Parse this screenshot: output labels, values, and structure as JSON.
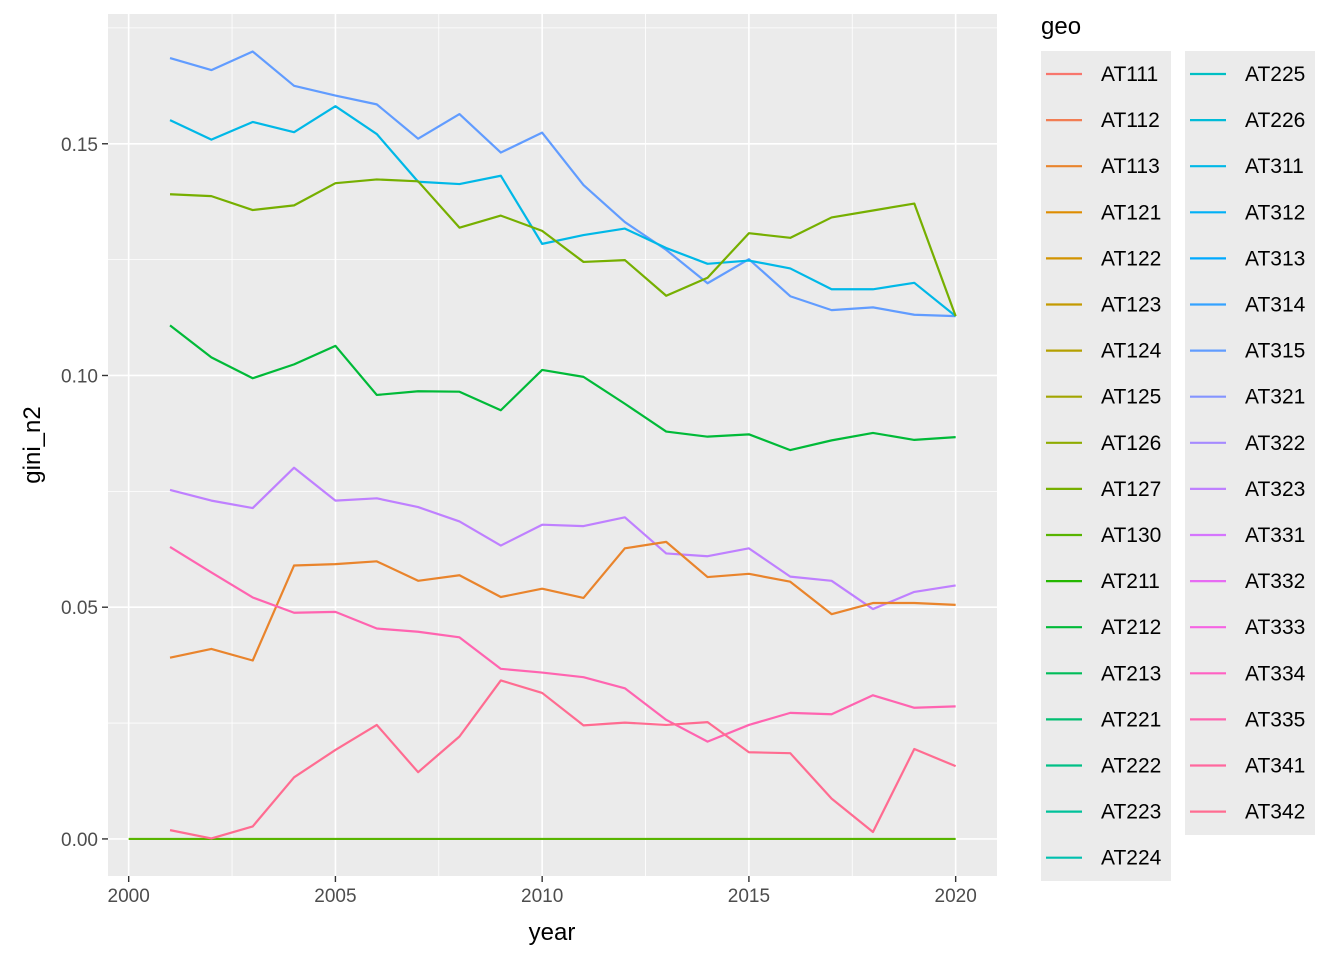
{
  "chart_data": {
    "type": "line",
    "xlabel": "year",
    "ylabel": "gini_n2",
    "xlim": [
      1999.5,
      2021
    ],
    "ylim": [
      -0.008,
      0.178
    ],
    "x_ticks": [
      2000,
      2005,
      2010,
      2015,
      2020
    ],
    "x_tick_labels": [
      "2000",
      "2005",
      "2010",
      "2015",
      "2020"
    ],
    "y_ticks": [
      0.0,
      0.05,
      0.1,
      0.15
    ],
    "y_tick_labels": [
      "0.00",
      "0.05",
      "0.10",
      "0.15"
    ],
    "background": "#EBEBEB",
    "grid": true,
    "legend_position": "right",
    "legend_title": "geo",
    "legend_entries": [
      {
        "label": "AT111",
        "color": "#F8766D"
      },
      {
        "label": "AT112",
        "color": "#F27D53"
      },
      {
        "label": "AT113",
        "color": "#E9842C"
      },
      {
        "label": "AT121",
        "color": "#DE8C00"
      },
      {
        "label": "AT122",
        "color": "#D29300"
      },
      {
        "label": "AT123",
        "color": "#C49A00"
      },
      {
        "label": "AT124",
        "color": "#B4A000"
      },
      {
        "label": "AT125",
        "color": "#A2A500"
      },
      {
        "label": "AT126",
        "color": "#8EAB00"
      },
      {
        "label": "AT127",
        "color": "#76AF00"
      },
      {
        "label": "AT130",
        "color": "#58B400"
      },
      {
        "label": "AT211",
        "color": "#24B700"
      },
      {
        "label": "AT212",
        "color": "#00BA38"
      },
      {
        "label": "AT213",
        "color": "#00BC59"
      },
      {
        "label": "AT221",
        "color": "#00BE71"
      },
      {
        "label": "AT222",
        "color": "#00C086"
      },
      {
        "label": "AT223",
        "color": "#00C19A"
      },
      {
        "label": "AT224",
        "color": "#00C0AF"
      },
      {
        "label": "AT225",
        "color": "#00BFC4"
      },
      {
        "label": "AT226",
        "color": "#00BCD8"
      },
      {
        "label": "AT311",
        "color": "#00B8E7"
      },
      {
        "label": "AT312",
        "color": "#00B0F6"
      },
      {
        "label": "AT313",
        "color": "#00A9FF"
      },
      {
        "label": "AT314",
        "color": "#35A2FF"
      },
      {
        "label": "AT315",
        "color": "#619CFF"
      },
      {
        "label": "AT321",
        "color": "#8494FF"
      },
      {
        "label": "AT322",
        "color": "#A58AFF"
      },
      {
        "label": "AT323",
        "color": "#BF80FF"
      },
      {
        "label": "AT331",
        "color": "#D575FE"
      },
      {
        "label": "AT332",
        "color": "#E76BF3"
      },
      {
        "label": "AT333",
        "color": "#F564E3"
      },
      {
        "label": "AT334",
        "color": "#FF61C3"
      },
      {
        "label": "AT335",
        "color": "#FF64B0"
      },
      {
        "label": "AT341",
        "color": "#FF689E"
      },
      {
        "label": "AT342",
        "color": "#FF6C91"
      }
    ],
    "x": [
      2001,
      2002,
      2003,
      2004,
      2005,
      2006,
      2007,
      2008,
      2009,
      2010,
      2011,
      2012,
      2013,
      2014,
      2015,
      2016,
      2017,
      2018,
      2019,
      2020
    ],
    "series": [
      {
        "name": "AT130",
        "color": "#58B400",
        "x": [
          2000,
          2020
        ],
        "values": [
          0.0,
          0.0
        ]
      },
      {
        "name": "AT315",
        "color": "#619CFF",
        "values": [
          0.1685,
          0.1659,
          0.1699,
          0.1625,
          0.1604,
          0.1585,
          0.1511,
          0.1564,
          0.1481,
          0.1524,
          0.1411,
          0.1331,
          0.1271,
          0.1199,
          0.1251,
          0.1171,
          0.1141,
          0.1147,
          0.1131,
          0.1128
        ]
      },
      {
        "name": "AT311",
        "color": "#00B8E7",
        "values": [
          0.1551,
          0.1509,
          0.1547,
          0.1525,
          0.1581,
          0.1521,
          0.1418,
          0.1413,
          0.1431,
          0.1284,
          0.1303,
          0.1317,
          0.1275,
          0.1241,
          0.1248,
          0.1231,
          0.1186,
          0.1186,
          0.12,
          0.1128
        ]
      },
      {
        "name": "AT127",
        "color": "#76AF00",
        "values": [
          0.1391,
          0.1387,
          0.1357,
          0.1367,
          0.1415,
          0.1423,
          0.1419,
          0.1319,
          0.1345,
          0.1312,
          0.1245,
          0.1249,
          0.1172,
          0.1211,
          0.1307,
          0.1297,
          0.1341,
          0.1356,
          0.1371,
          0.1128
        ]
      },
      {
        "name": "AT212",
        "color": "#00BA38",
        "values": [
          0.1108,
          0.1039,
          0.0994,
          0.1024,
          0.1064,
          0.0958,
          0.0966,
          0.0965,
          0.0925,
          0.1012,
          0.0997,
          0.0939,
          0.0879,
          0.0868,
          0.0873,
          0.0839,
          0.086,
          0.0876,
          0.0861,
          0.0867
        ]
      },
      {
        "name": "AT323",
        "color": "#BF80FF",
        "values": [
          0.0753,
          0.073,
          0.0714,
          0.0801,
          0.073,
          0.0735,
          0.0716,
          0.0685,
          0.0633,
          0.0678,
          0.0675,
          0.0694,
          0.0616,
          0.061,
          0.0627,
          0.0566,
          0.0557,
          0.0496,
          0.0533,
          0.0547
        ]
      },
      {
        "name": "AT113",
        "color": "#E9842C",
        "values": [
          0.0391,
          0.041,
          0.0385,
          0.059,
          0.0593,
          0.0599,
          0.0557,
          0.0569,
          0.0522,
          0.054,
          0.052,
          0.0627,
          0.0641,
          0.0565,
          0.0572,
          0.0555,
          0.0485,
          0.0509,
          0.0509,
          0.0505
        ]
      },
      {
        "name": "AT335",
        "color": "#FF64B0",
        "values": [
          0.063,
          0.0575,
          0.0521,
          0.0488,
          0.049,
          0.0454,
          0.0447,
          0.0435,
          0.0367,
          0.0359,
          0.0349,
          0.0325,
          0.0257,
          0.021,
          0.0246,
          0.0272,
          0.0269,
          0.031,
          0.0283,
          0.0286
        ]
      },
      {
        "name": "AT342",
        "color": "#FF6C91",
        "values": [
          0.0019,
          0.0001,
          0.0027,
          0.0133,
          0.0192,
          0.0246,
          0.0144,
          0.0221,
          0.0342,
          0.0315,
          0.0245,
          0.0251,
          0.0246,
          0.0252,
          0.0187,
          0.0185,
          0.0087,
          0.0015,
          0.0194,
          0.0157
        ]
      }
    ]
  }
}
